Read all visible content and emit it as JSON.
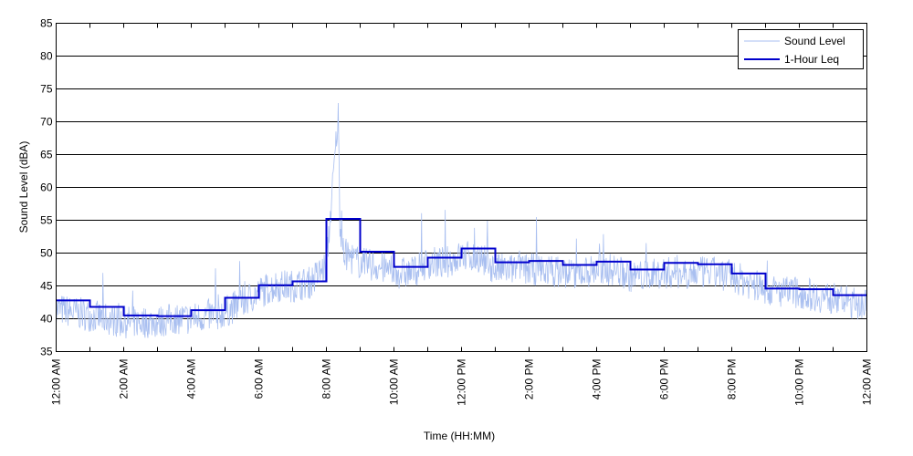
{
  "chart_data": {
    "type": "line",
    "xlabel": "Time (HH:MM)",
    "ylabel": "Sound Level (dBA)",
    "ylim": [
      35,
      85
    ],
    "yticks": [
      35,
      40,
      45,
      50,
      55,
      60,
      65,
      70,
      75,
      80,
      85
    ],
    "xlim": [
      0,
      24
    ],
    "xticks": [
      0,
      1,
      2,
      3,
      4,
      5,
      6,
      7,
      8,
      9,
      10,
      11,
      12,
      13,
      14,
      15,
      16,
      17,
      18,
      19,
      20,
      21,
      22,
      23,
      24
    ],
    "xtick_labels": [
      "12:00 AM",
      "",
      "2:00 AM",
      "",
      "4:00 AM",
      "",
      "6:00 AM",
      "",
      "8:00 AM",
      "",
      "10:00 AM",
      "",
      "12:00 PM",
      "",
      "2:00 PM",
      "",
      "4:00 PM",
      "",
      "6:00 PM",
      "",
      "8:00 PM",
      "",
      "10:00 PM",
      "",
      "12:00 AM"
    ],
    "grid": "horizontal",
    "legend_position": "top-right",
    "colors": {
      "sound_level": "#a9bff0",
      "leq": "#0000cc",
      "grid": "#000000",
      "frame": "#000000"
    },
    "series": [
      {
        "name": "Sound Level",
        "style": "thin-noisy-line",
        "hours": [
          0,
          0.5,
          1,
          1.5,
          2,
          2.5,
          3,
          3.5,
          4,
          4.5,
          5,
          5.5,
          6,
          6.5,
          7,
          7.5,
          8,
          8.35,
          8.4,
          8.5,
          9,
          9.5,
          10,
          10.5,
          11,
          11.5,
          12,
          12.5,
          13,
          13.5,
          14,
          14.5,
          15,
          15.5,
          16,
          16.5,
          17,
          17.5,
          18,
          18.5,
          19,
          19.5,
          20,
          20.5,
          21,
          21.5,
          22,
          22.5,
          23,
          23.5,
          24
        ],
        "values": [
          41.5,
          41,
          40.5,
          40,
          39.5,
          39.5,
          39.5,
          40,
          40,
          40.5,
          41,
          42.5,
          44,
          45,
          45,
          45.5,
          48,
          71,
          55,
          50,
          48.5,
          48,
          47,
          47,
          48.5,
          48.5,
          49.5,
          49.5,
          47.5,
          47.5,
          47.5,
          47.5,
          47,
          47,
          47.5,
          47.5,
          46.5,
          46.5,
          47,
          47,
          47,
          47,
          46.5,
          45.5,
          44.5,
          44,
          44,
          43.5,
          43,
          42.5,
          42
        ]
      },
      {
        "name": "1-Hour Leq",
        "style": "step",
        "hours": [
          0,
          1,
          2,
          3,
          4,
          5,
          6,
          7,
          8,
          9,
          10,
          11,
          12,
          13,
          14,
          15,
          16,
          17,
          18,
          19,
          20,
          21,
          22,
          23
        ],
        "values": [
          42.8,
          41.8,
          40.5,
          40.4,
          41.3,
          43.2,
          45.1,
          45.7,
          55.2,
          50.2,
          47.9,
          49.3,
          50.7,
          48.6,
          48.8,
          48.2,
          48.7,
          47.5,
          48.5,
          48.3,
          46.9,
          44.6,
          44.5,
          43.6
        ]
      }
    ]
  }
}
